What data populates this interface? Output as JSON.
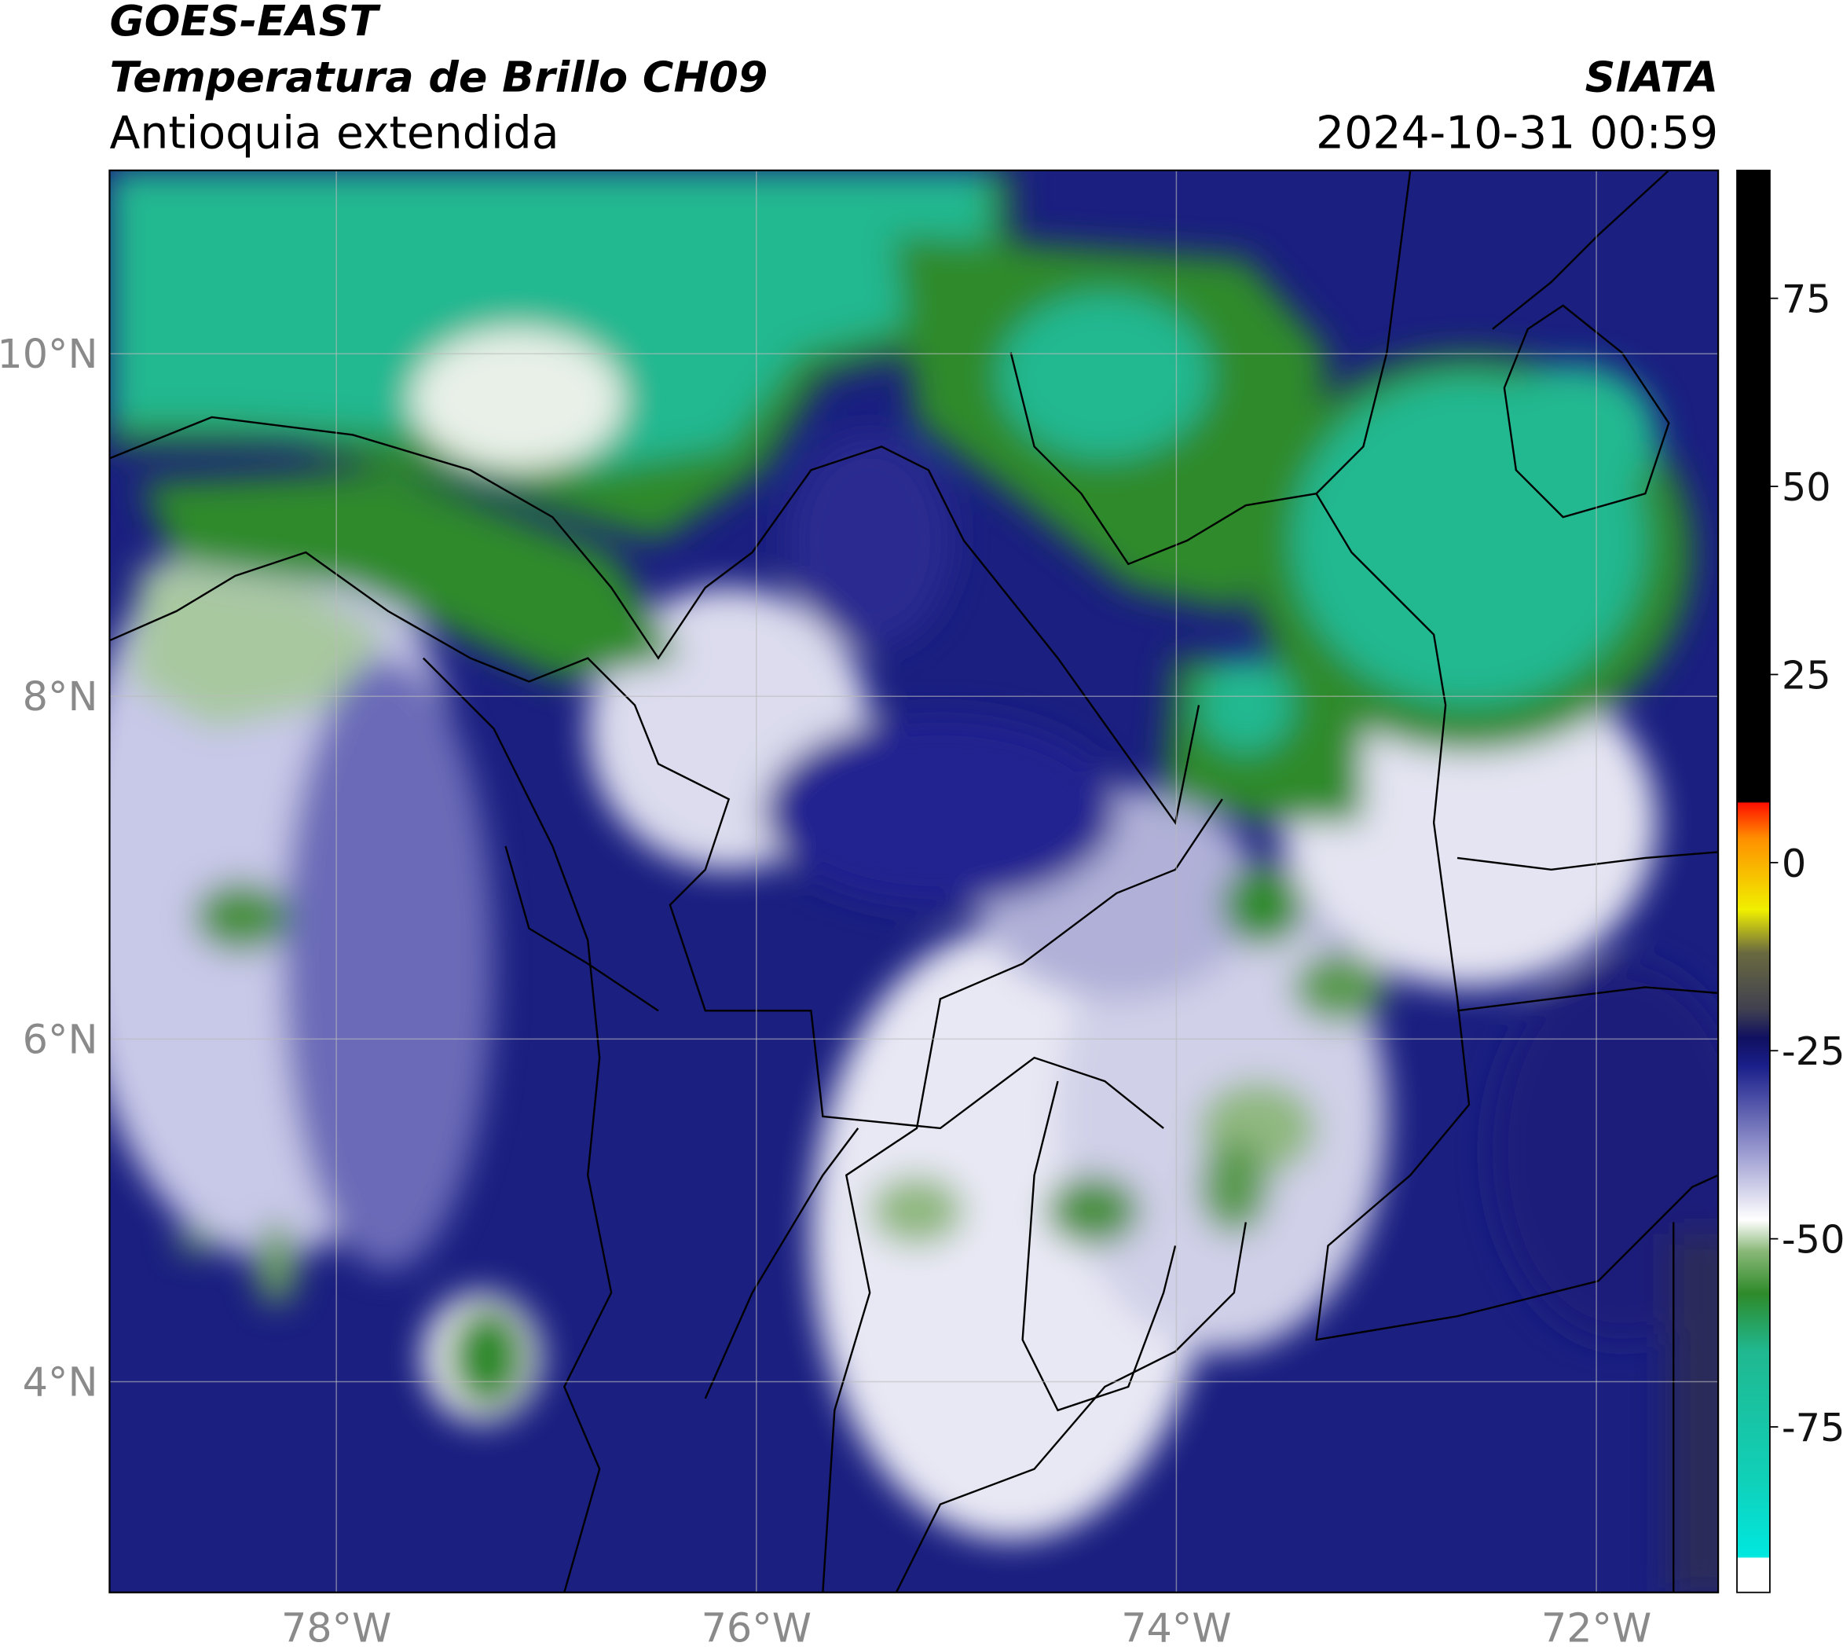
{
  "header": {
    "satellite": "GOES-EAST",
    "product": "Temperatura de Brillo CH09",
    "region": "Antioquia extendida",
    "agency": "SIATA",
    "datetime": "2024-10-31 00:59"
  },
  "map": {
    "xlim": [
      -79.08,
      -71.42
    ],
    "ylim": [
      2.77,
      11.07
    ],
    "xticks": [
      {
        "value": -78,
        "label": "78°W"
      },
      {
        "value": -76,
        "label": "76°W"
      },
      {
        "value": -74,
        "label": "74°W"
      },
      {
        "value": -72,
        "label": "72°W"
      }
    ],
    "yticks": [
      {
        "value": 4,
        "label": "4°N"
      },
      {
        "value": 6,
        "label": "6°N"
      },
      {
        "value": 8,
        "label": "8°N"
      },
      {
        "value": 10,
        "label": "10°N"
      }
    ]
  },
  "colorbar": {
    "lim": [
      -97,
      92
    ],
    "ticks": [
      75,
      50,
      25,
      0,
      -25,
      -50,
      -75
    ]
  }
}
